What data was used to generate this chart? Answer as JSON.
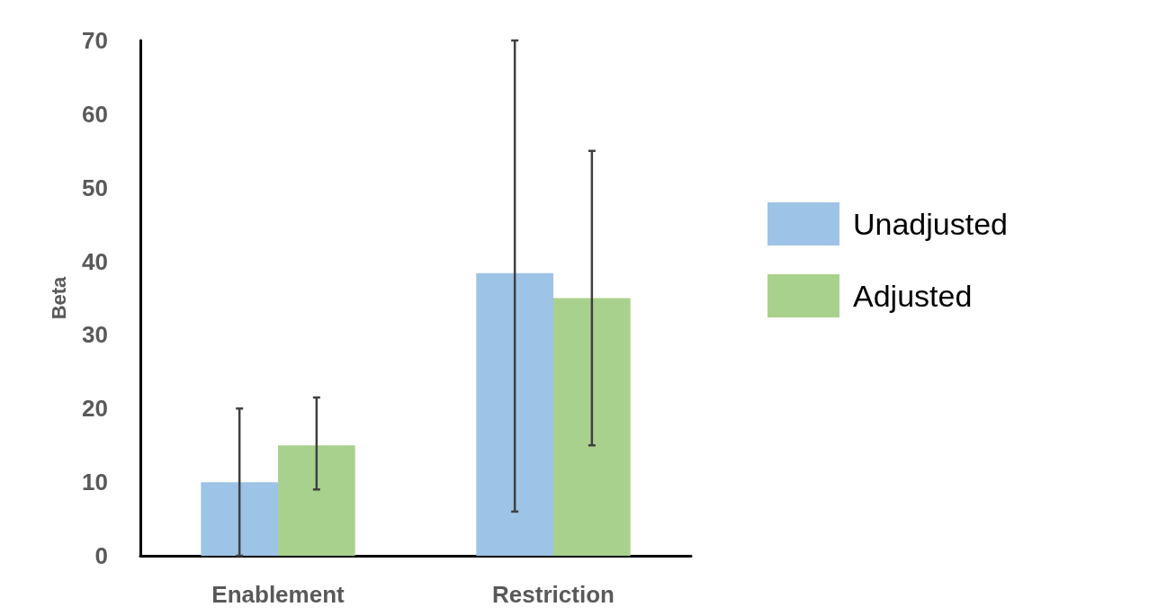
{
  "chart_data": {
    "type": "bar",
    "ylabel": "Beta",
    "categories": [
      "Enablement",
      "Restriction"
    ],
    "series": [
      {
        "name": "Unadjusted",
        "color": "#9dc3e6",
        "values": [
          10,
          38.4
        ],
        "errors": [
          [
            0,
            20
          ],
          [
            6,
            70
          ]
        ]
      },
      {
        "name": "Adjusted",
        "color": "#a9d18e",
        "values": [
          15,
          35
        ],
        "errors": [
          [
            9,
            21.5
          ],
          [
            15,
            55
          ]
        ]
      }
    ],
    "ylim": [
      0,
      70
    ],
    "yticks": [
      0,
      10,
      20,
      30,
      40,
      50,
      60,
      70
    ],
    "grid": false,
    "legend": "right"
  }
}
